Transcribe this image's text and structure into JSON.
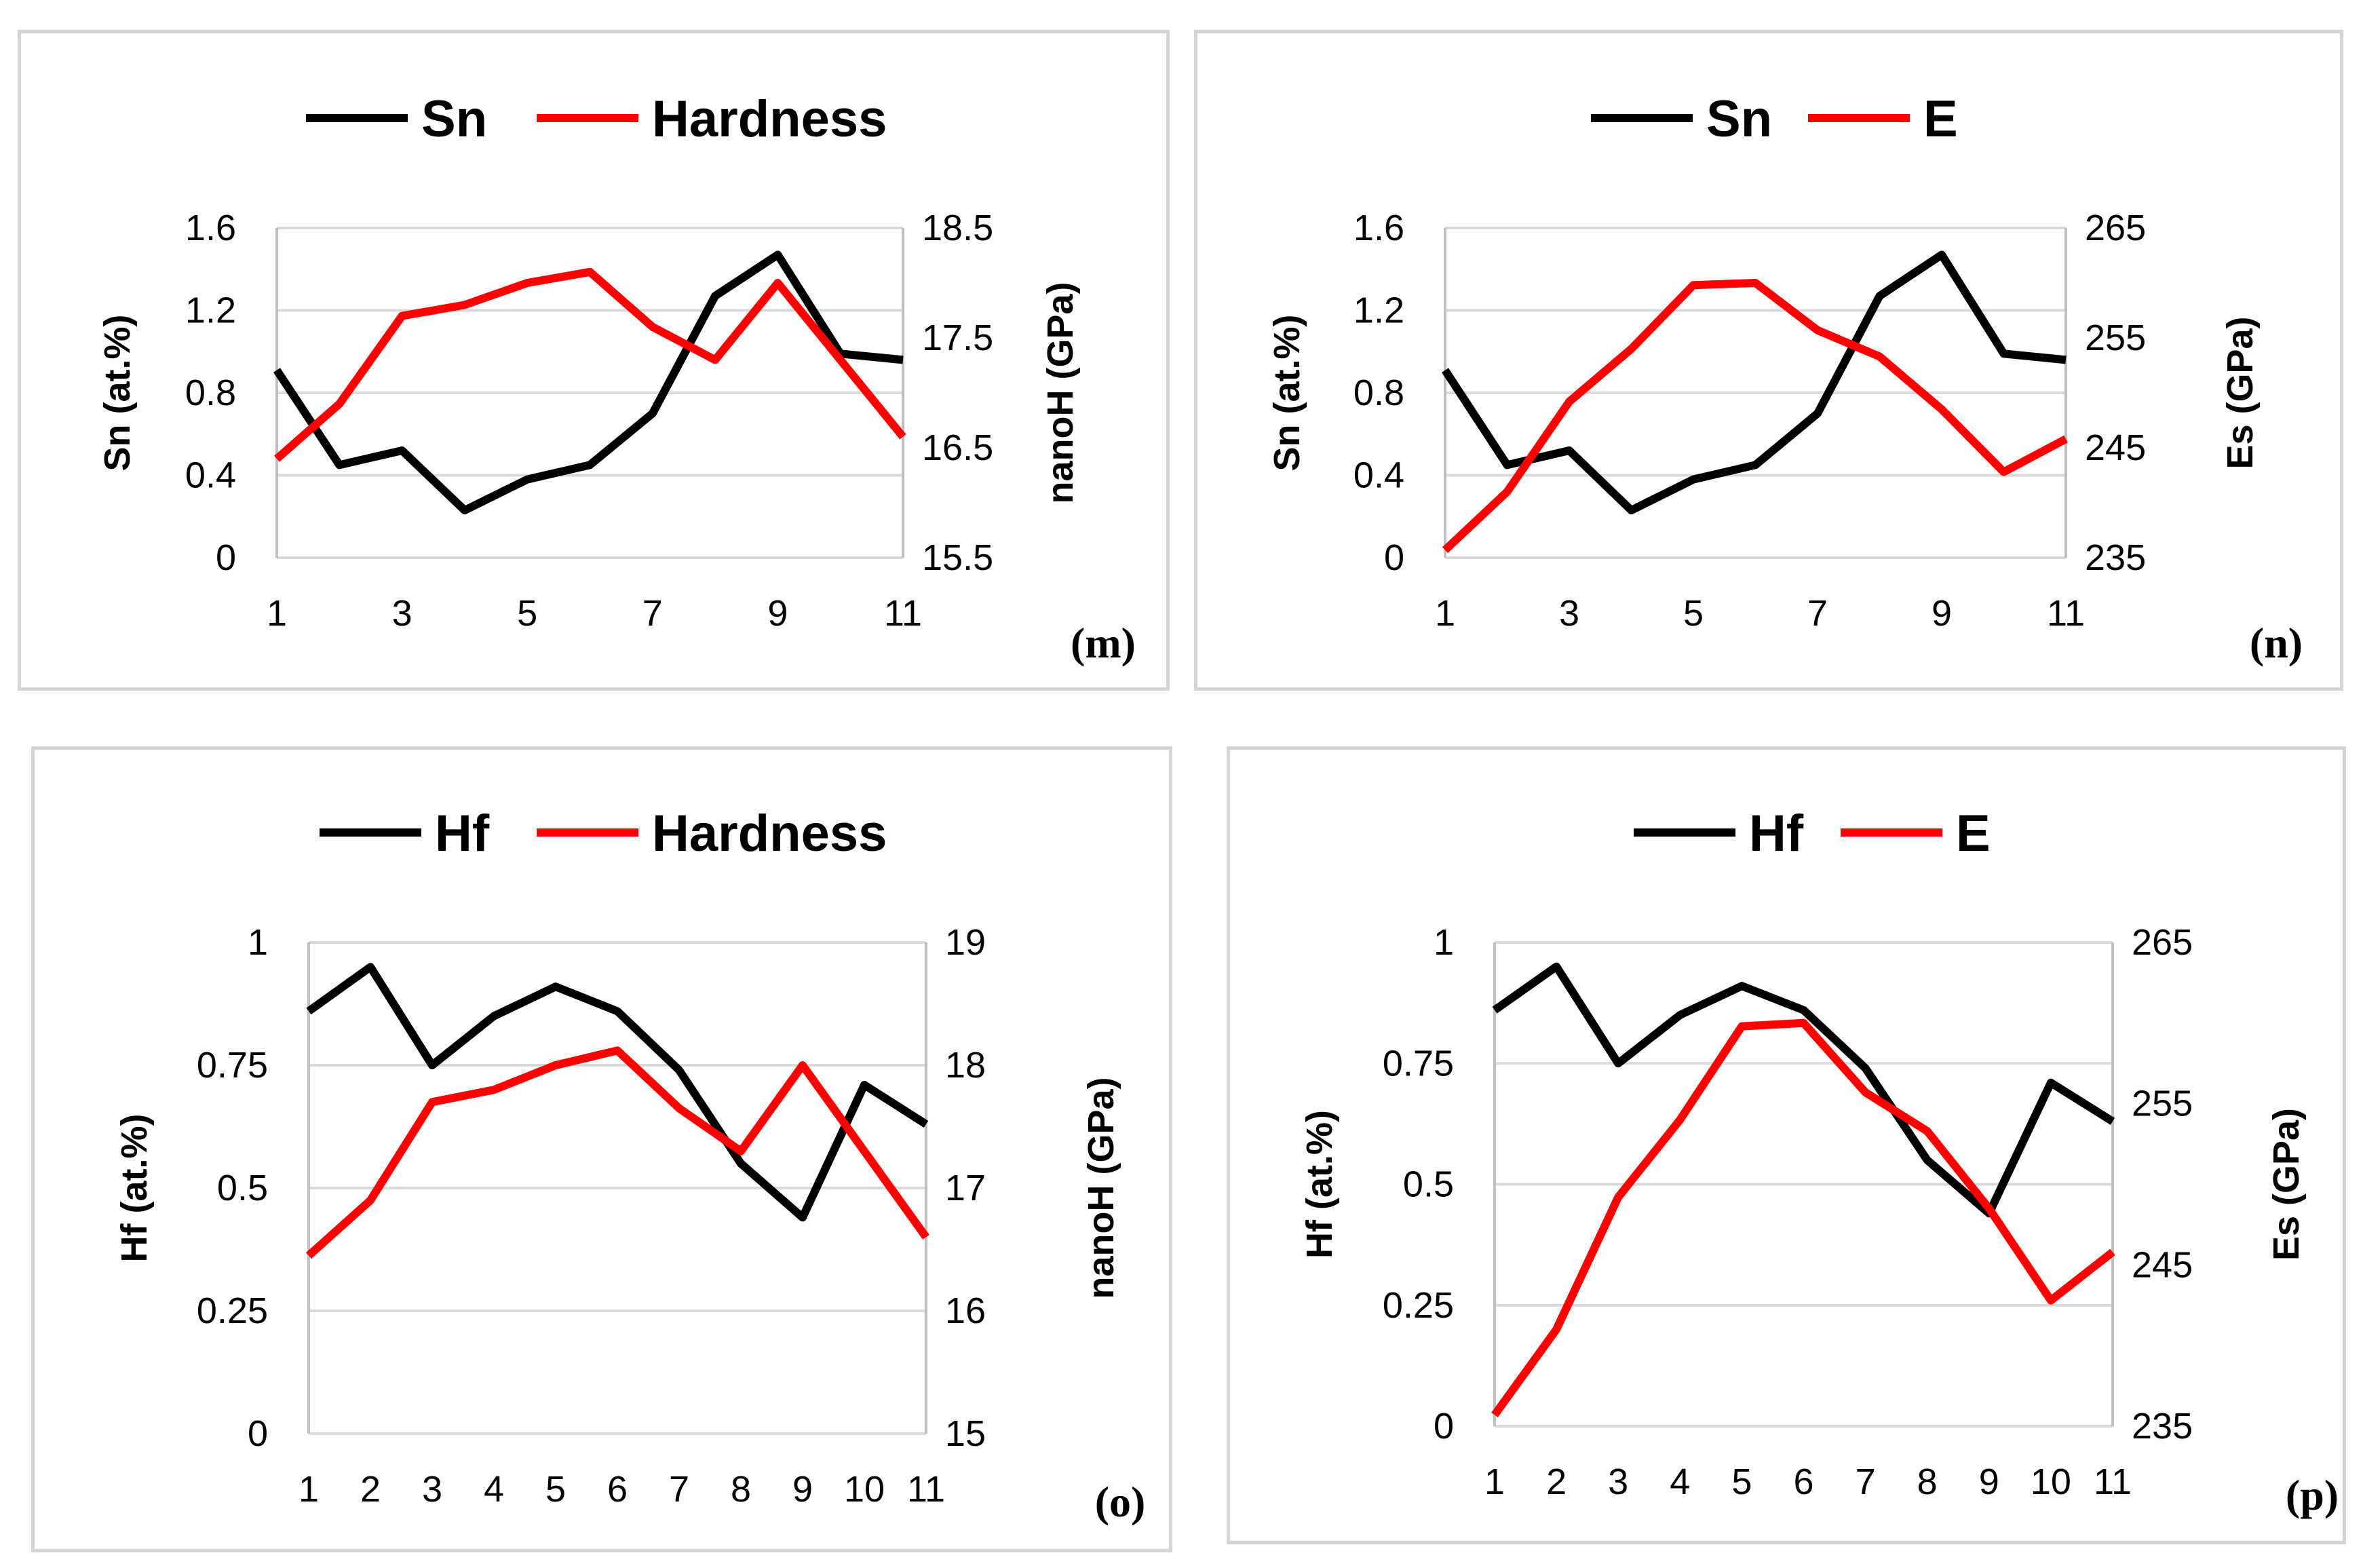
{
  "chart_data": [
    {
      "type": "line",
      "panel_label": "(m)",
      "x": [
        1,
        2,
        3,
        4,
        5,
        6,
        7,
        8,
        9,
        10,
        11
      ],
      "x_tick_labels": [
        "1",
        "3",
        "5",
        "7",
        "9",
        "11"
      ],
      "left_axis": {
        "label": "Sn (at.%)",
        "range": [
          0,
          1.6
        ],
        "ticks": [
          "0",
          "0.4",
          "0.8",
          "1.2",
          "1.6"
        ]
      },
      "right_axis": {
        "label": "nanoH (GPa)",
        "range": [
          15.5,
          18.5
        ],
        "ticks": [
          "15.5",
          "16.5",
          "17.5",
          "18.5"
        ]
      },
      "series": [
        {
          "name": "Sn",
          "axis": "left",
          "color": "#000000",
          "values": [
            0.91,
            0.45,
            0.52,
            0.23,
            0.38,
            0.45,
            0.7,
            1.27,
            1.47,
            0.99,
            0.96
          ]
        },
        {
          "name": "Hardness",
          "axis": "right",
          "color": "#ff0000",
          "values": [
            16.4,
            16.9,
            17.7,
            17.8,
            18.0,
            18.1,
            17.6,
            17.3,
            18.0,
            17.3,
            16.6
          ]
        }
      ]
    },
    {
      "type": "line",
      "panel_label": "(n)",
      "x": [
        1,
        2,
        3,
        4,
        5,
        6,
        7,
        8,
        9,
        10,
        11
      ],
      "x_tick_labels": [
        "1",
        "3",
        "5",
        "7",
        "9",
        "11"
      ],
      "left_axis": {
        "label": "Sn (at.%)",
        "range": [
          0,
          1.6
        ],
        "ticks": [
          "0",
          "0.4",
          "0.8",
          "1.2",
          "1.6"
        ]
      },
      "right_axis": {
        "label": "Es (GPa)",
        "range": [
          235,
          265
        ],
        "ticks": [
          "235",
          "245",
          "255",
          "265"
        ]
      },
      "series": [
        {
          "name": "Sn",
          "axis": "left",
          "color": "#000000",
          "values": [
            0.91,
            0.45,
            0.52,
            0.23,
            0.38,
            0.45,
            0.7,
            1.27,
            1.47,
            0.99,
            0.96
          ]
        },
        {
          "name": "E",
          "axis": "right",
          "color": "#ff0000",
          "values": [
            235.7,
            241.0,
            249.2,
            254.0,
            259.8,
            260.0,
            255.7,
            253.3,
            248.5,
            242.8,
            245.8
          ]
        }
      ]
    },
    {
      "type": "line",
      "panel_label": "(o)",
      "x": [
        1,
        2,
        3,
        4,
        5,
        6,
        7,
        8,
        9,
        10,
        11
      ],
      "x_tick_labels": [
        "1",
        "2",
        "3",
        "4",
        "5",
        "6",
        "7",
        "8",
        "9",
        "10",
        "11"
      ],
      "left_axis": {
        "label": "Hf (at.%)",
        "range": [
          0,
          1
        ],
        "ticks": [
          "0",
          "0.25",
          "0.5",
          "0.75",
          "1"
        ]
      },
      "right_axis": {
        "label": "nanoH (GPa)",
        "range": [
          15,
          19
        ],
        "ticks": [
          "15",
          "16",
          "17",
          "18",
          "19"
        ]
      },
      "series": [
        {
          "name": "Hf",
          "axis": "left",
          "color": "#000000",
          "values": [
            0.86,
            0.95,
            0.75,
            0.85,
            0.91,
            0.86,
            0.74,
            0.55,
            0.44,
            0.71,
            0.63
          ]
        },
        {
          "name": "Hardness",
          "axis": "right",
          "color": "#ff0000",
          "values": [
            16.45,
            16.9,
            17.7,
            17.8,
            18.0,
            18.12,
            17.65,
            17.3,
            18.0,
            17.3,
            16.6
          ]
        }
      ]
    },
    {
      "type": "line",
      "panel_label": "(p)",
      "x": [
        1,
        2,
        3,
        4,
        5,
        6,
        7,
        8,
        9,
        10,
        11
      ],
      "x_tick_labels": [
        "1",
        "2",
        "3",
        "4",
        "5",
        "6",
        "7",
        "8",
        "9",
        "10",
        "11"
      ],
      "left_axis": {
        "label": "Hf (at.%)",
        "range": [
          0,
          1
        ],
        "ticks": [
          "0",
          "0.25",
          "0.5",
          "0.75",
          "1"
        ]
      },
      "right_axis": {
        "label": "Es (GPa)",
        "range": [
          235,
          265
        ],
        "ticks": [
          "235",
          "245",
          "255",
          "265"
        ]
      },
      "series": [
        {
          "name": "Hf",
          "axis": "left",
          "color": "#000000",
          "values": [
            0.86,
            0.95,
            0.75,
            0.85,
            0.91,
            0.86,
            0.74,
            0.55,
            0.44,
            0.71,
            0.63
          ]
        },
        {
          "name": "E",
          "axis": "right",
          "color": "#ff0000",
          "values": [
            235.7,
            241.0,
            249.2,
            254.0,
            259.8,
            260.0,
            255.7,
            253.3,
            248.5,
            242.8,
            245.8
          ]
        }
      ]
    }
  ]
}
